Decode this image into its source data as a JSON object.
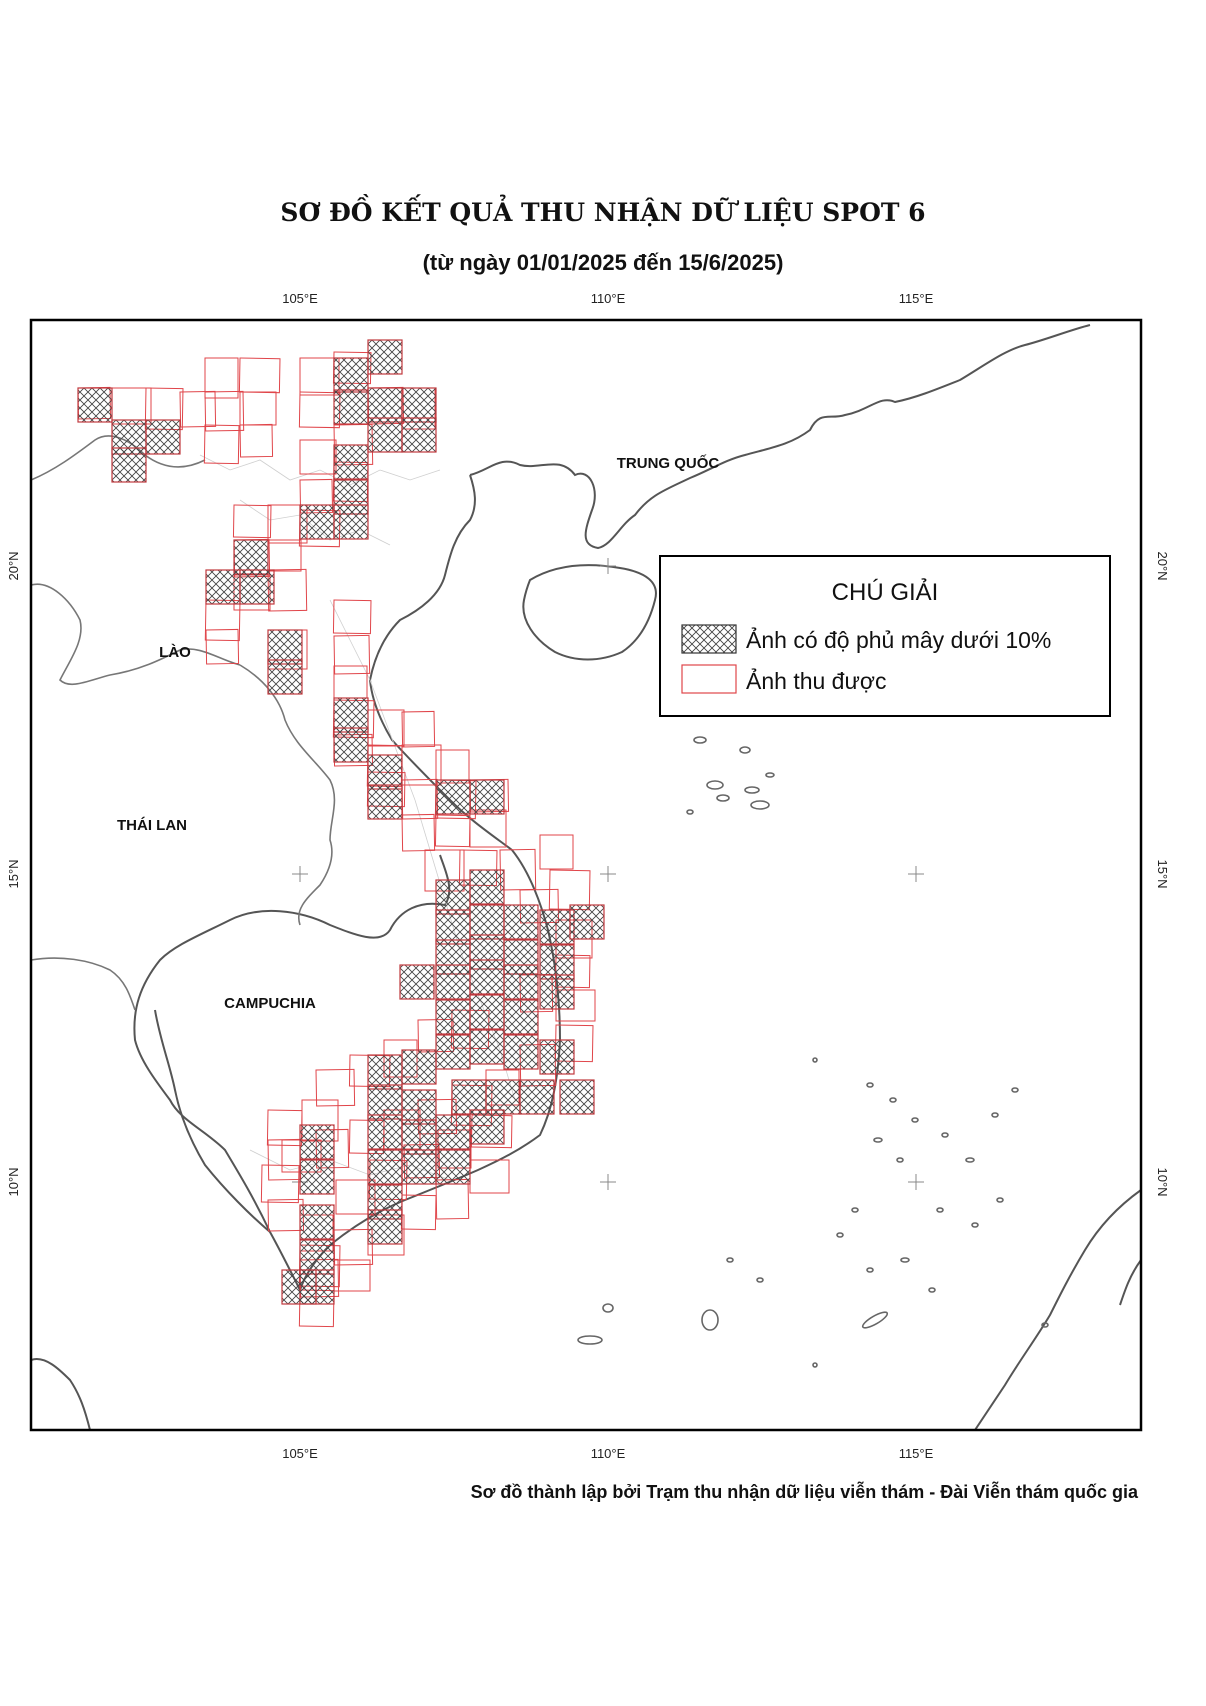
{
  "title": "SƠ ĐỒ KẾT QUẢ THU NHẬN DỮ LIỆU SPOT 6",
  "subtitle": "(từ ngày 01/01/2025 đến 15/6/2025)",
  "credit": "Sơ đồ thành lập bởi Trạm thu nhận dữ liệu viễn thám - Đài Viễn thám quốc gia",
  "axes": {
    "top_ticks": [
      "105°E",
      "110°E",
      "115°E"
    ],
    "bottom_ticks": [
      "105°E",
      "110°E",
      "115°E"
    ],
    "left_ticks": [
      "20°N",
      "15°N",
      "10°N"
    ],
    "right_ticks": [
      "20°N",
      "15°N",
      "10°N"
    ]
  },
  "countries": {
    "china": "TRUNG QUỐC",
    "laos": "LÀO",
    "thailand": "THÁI LAN",
    "cambodia": "CAMPUCHIA"
  },
  "legend": {
    "title": "CHÚ GIẢI",
    "item_cloudfree": "Ảnh có độ phủ mây dưới 10%",
    "item_acquired": "Ảnh thu được"
  },
  "colors": {
    "footprint_red": "#e0454a",
    "hatch_dark": "#444444",
    "coastline": "#555555",
    "frame": "#000000"
  },
  "icons": {
    "hatched_square": "hatched-square-icon",
    "red_outline_square": "red-outline-square-icon"
  }
}
